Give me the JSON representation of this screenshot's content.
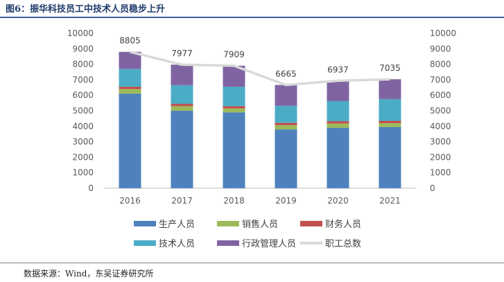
{
  "figure_title": "图6：振华科技员工中技术人员稳步上升",
  "source_note": "数据来源：Wind，东吴证券研究所",
  "chart_data": {
    "type": "bar",
    "stacked": true,
    "categories": [
      "2016",
      "2017",
      "2018",
      "2019",
      "2020",
      "2021"
    ],
    "ylim": [
      0,
      10000
    ],
    "y_ticks": [
      0,
      1000,
      2000,
      3000,
      4000,
      5000,
      6000,
      7000,
      8000,
      9000,
      10000
    ],
    "y2lim": [
      0,
      10000
    ],
    "grid": false,
    "legend_position": "bottom",
    "series": [
      {
        "name": "生产人员",
        "color": "#4f81bd",
        "values": [
          6100,
          5000,
          4900,
          3800,
          3900,
          3950
        ]
      },
      {
        "name": "销售人员",
        "color": "#9bbb59",
        "values": [
          300,
          300,
          250,
          270,
          280,
          250
        ]
      },
      {
        "name": "财务人员",
        "color": "#c0504d",
        "values": [
          150,
          150,
          150,
          150,
          150,
          150
        ]
      },
      {
        "name": "技术人员",
        "color": "#4bacc6",
        "values": [
          1150,
          1200,
          1250,
          1100,
          1300,
          1400
        ]
      },
      {
        "name": "行政管理人员",
        "color": "#8064a2",
        "values": [
          1105,
          1327,
          1359,
          1345,
          1307,
          1285
        ]
      }
    ],
    "line_series": {
      "name": "职工总数",
      "color": "#d9d9d9",
      "values": [
        8805,
        7977,
        7909,
        6665,
        6937,
        7035
      ]
    }
  }
}
